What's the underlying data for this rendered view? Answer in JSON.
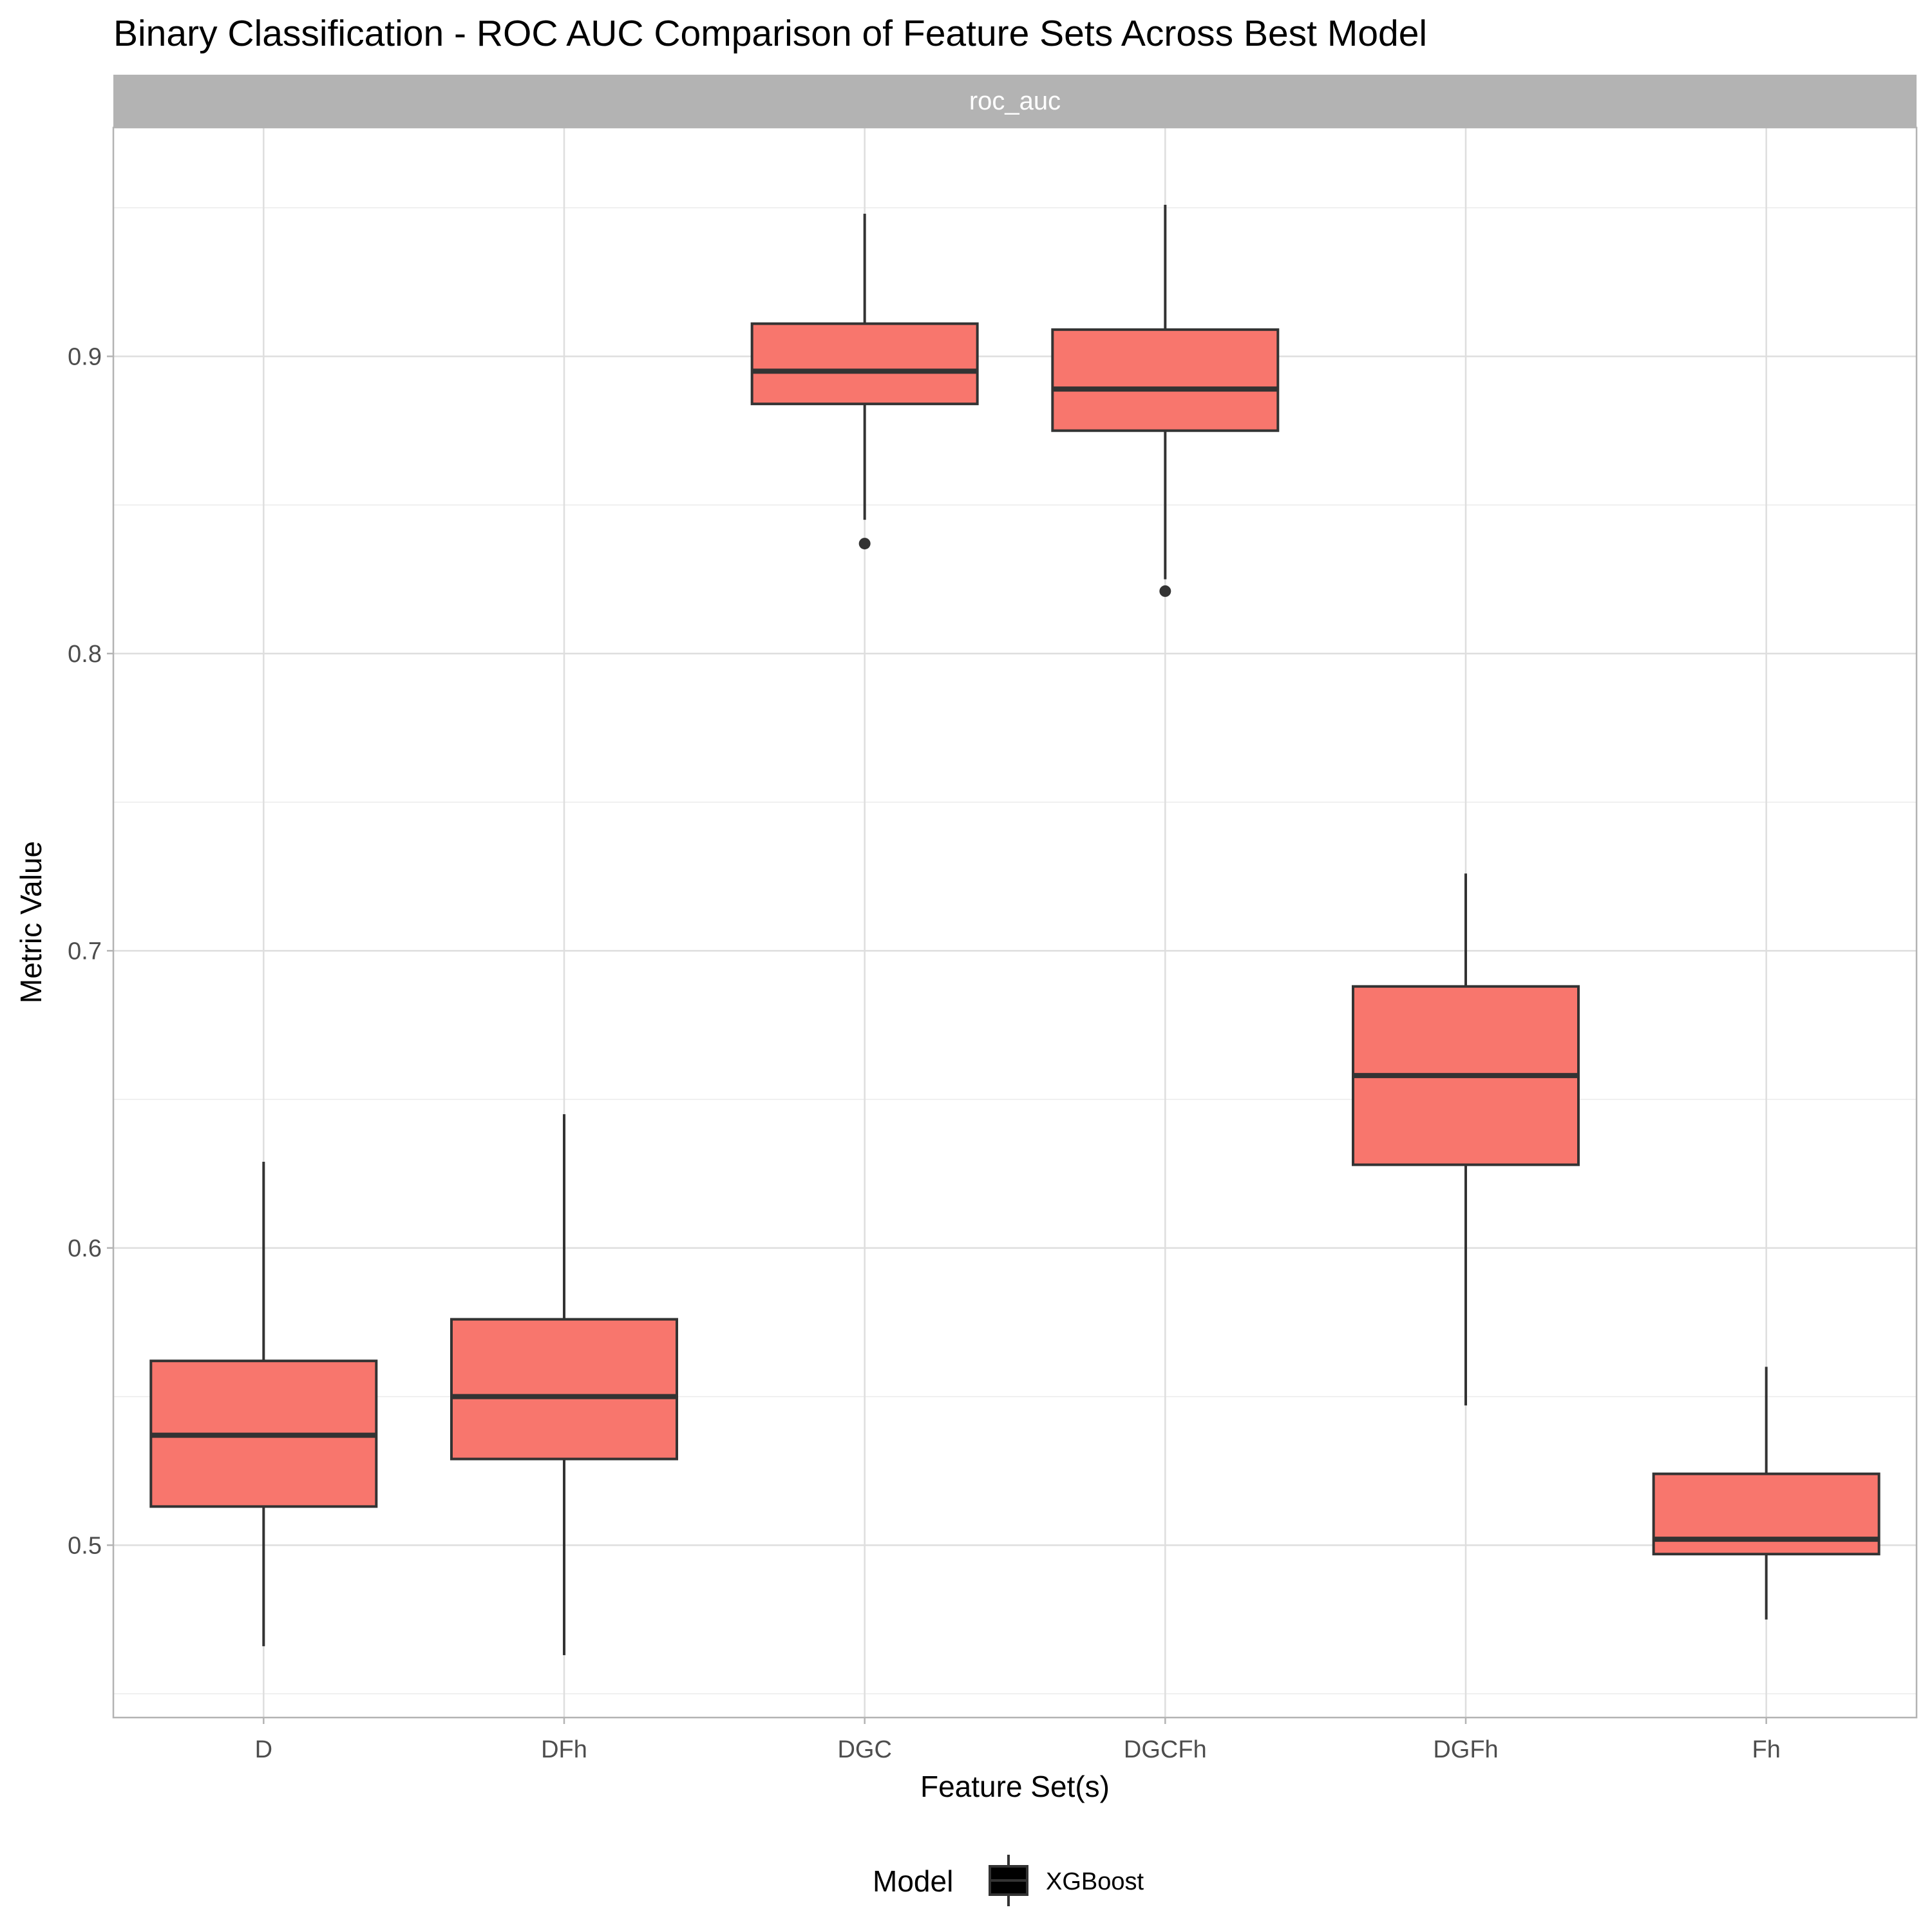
{
  "chart_data": {
    "type": "box",
    "title": "Binary Classification - ROC AUC Comparison of Feature Sets Across Best Model",
    "facet": "roc_auc",
    "xlabel": "Feature Set(s)",
    "ylabel": "Metric Value",
    "ylim": [
      0.442,
      0.977
    ],
    "yticks": [
      0.5,
      0.6,
      0.7,
      0.8,
      0.9
    ],
    "grid": true,
    "legend": {
      "title": "Model",
      "position": "bottom",
      "entries": [
        "XGBoost"
      ]
    },
    "categories": [
      "D",
      "DFh",
      "DGC",
      "DGCFh",
      "DGFh",
      "Fh"
    ],
    "series": [
      {
        "name": "XGBoost",
        "color": "#F8766D",
        "boxes": [
          {
            "category": "D",
            "whisker_low": 0.466,
            "q1": 0.513,
            "median": 0.537,
            "q3": 0.562,
            "whisker_high": 0.629,
            "outliers": []
          },
          {
            "category": "DFh",
            "whisker_low": 0.463,
            "q1": 0.529,
            "median": 0.55,
            "q3": 0.576,
            "whisker_high": 0.645,
            "outliers": []
          },
          {
            "category": "DGC",
            "whisker_low": 0.845,
            "q1": 0.884,
            "median": 0.895,
            "q3": 0.911,
            "whisker_high": 0.948,
            "outliers": [
              0.837
            ]
          },
          {
            "category": "DGCFh",
            "whisker_low": 0.825,
            "q1": 0.875,
            "median": 0.889,
            "q3": 0.909,
            "whisker_high": 0.951,
            "outliers": [
              0.821
            ]
          },
          {
            "category": "DGFh",
            "whisker_low": 0.547,
            "q1": 0.628,
            "median": 0.658,
            "q3": 0.688,
            "whisker_high": 0.726,
            "outliers": []
          },
          {
            "category": "Fh",
            "whisker_low": 0.475,
            "q1": 0.497,
            "median": 0.502,
            "q3": 0.524,
            "whisker_high": 0.56,
            "outliers": []
          }
        ]
      }
    ]
  }
}
